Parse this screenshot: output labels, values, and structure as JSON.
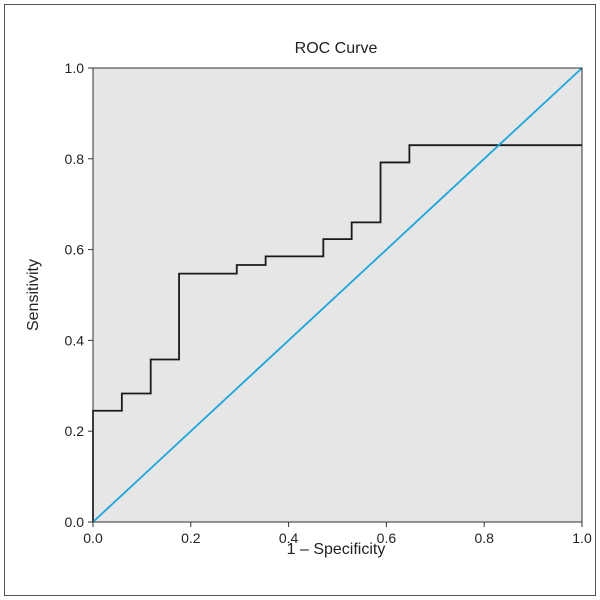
{
  "chart_data": {
    "type": "line",
    "title": "ROC Curve",
    "xlabel": "1 – Specificity",
    "ylabel": "Sensitivity",
    "xlim": [
      0.0,
      1.0
    ],
    "ylim": [
      0.0,
      1.0
    ],
    "x_ticks": [
      "0.0",
      "0.2",
      "0.4",
      "0.6",
      "0.8",
      "1.0"
    ],
    "y_ticks": [
      "0.0",
      "0.2",
      "0.4",
      "0.6",
      "0.8",
      "1.0"
    ],
    "grid": false,
    "plot_background": "#e6e6e6",
    "series": [
      {
        "color": "#1a1a1a",
        "step": true,
        "points": [
          [
            0.0,
            0.0
          ],
          [
            0.0,
            0.245
          ],
          [
            0.059,
            0.245
          ],
          [
            0.059,
            0.283
          ],
          [
            0.118,
            0.283
          ],
          [
            0.118,
            0.358
          ],
          [
            0.176,
            0.358
          ],
          [
            0.176,
            0.547
          ],
          [
            0.294,
            0.547
          ],
          [
            0.294,
            0.566
          ],
          [
            0.353,
            0.566
          ],
          [
            0.353,
            0.585
          ],
          [
            0.471,
            0.585
          ],
          [
            0.471,
            0.623
          ],
          [
            0.529,
            0.623
          ],
          [
            0.529,
            0.66
          ],
          [
            0.588,
            0.66
          ],
          [
            0.588,
            0.792
          ],
          [
            0.647,
            0.792
          ],
          [
            0.647,
            0.83
          ],
          [
            1.0,
            0.83
          ]
        ]
      },
      {
        "color": "#1aa6dc",
        "step": false,
        "points": [
          [
            0.0,
            0.0
          ],
          [
            1.0,
            1.0
          ]
        ]
      }
    ]
  }
}
